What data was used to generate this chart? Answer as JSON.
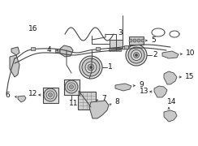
{
  "bg_color": "#ffffff",
  "fig_width": 2.44,
  "fig_height": 1.8,
  "dpi": 100,
  "line_color": "#444444",
  "label_color": "#111111",
  "label_fontsize": 6.0,
  "part_color": "#cccccc",
  "part_edge": "#444444"
}
